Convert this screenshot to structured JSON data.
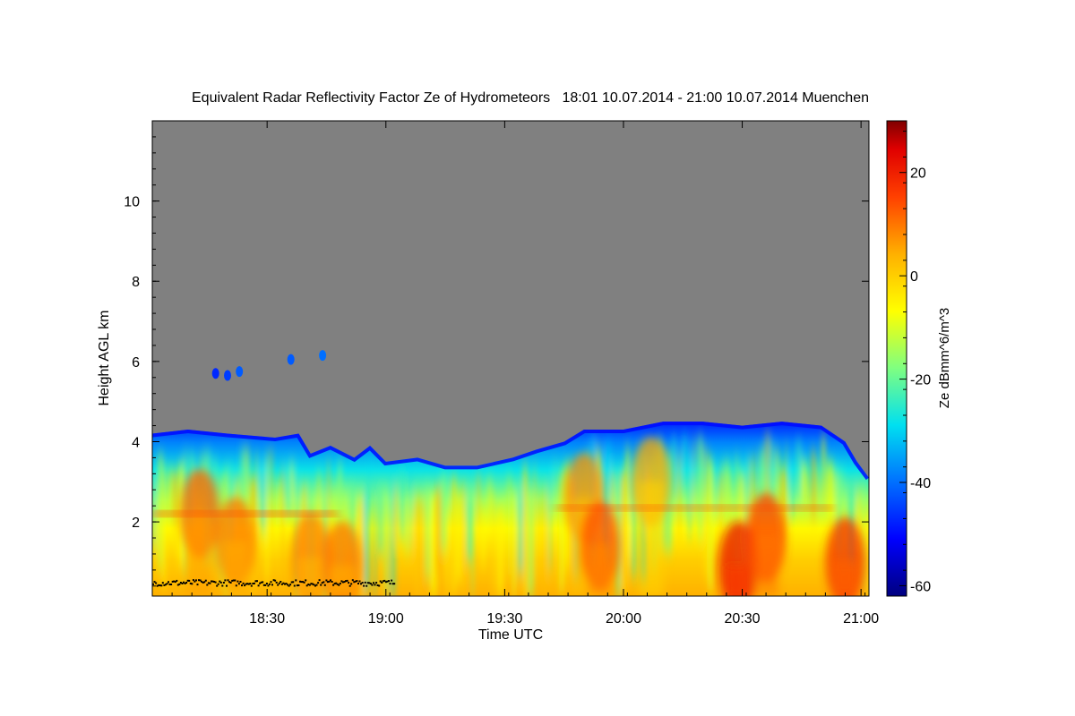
{
  "chart_data": {
    "type": "heatmap",
    "title": "Equivalent Radar Reflectivity Factor Ze of Hydrometeors   18:01 10.07.2014 - 21:00 10.07.2014 Muenchen",
    "xlabel": "Time UTC",
    "ylabel": "Height AGL km",
    "colorbar_label": "Ze dBmm^6/m^3",
    "x_range_minutes_utc": [
      1081,
      1262
    ],
    "x_ticks": [
      {
        "minute": 1110,
        "label": "18:30"
      },
      {
        "minute": 1140,
        "label": "19:00"
      },
      {
        "minute": 1170,
        "label": "19:30"
      },
      {
        "minute": 1200,
        "label": "20:00"
      },
      {
        "minute": 1230,
        "label": "20:30"
      },
      {
        "minute": 1260,
        "label": "21:00"
      }
    ],
    "ylim": [
      0.15,
      12.0
    ],
    "y_ticks": [
      2,
      4,
      6,
      8,
      10
    ],
    "colorbar_range": [
      -62,
      30
    ],
    "colorbar_ticks": [
      20,
      0,
      -20,
      -40,
      -60
    ],
    "background_no_signal": "#808080",
    "cloud_top_profile_km": [
      {
        "minute": 1081,
        "top": 4.2
      },
      {
        "minute": 1090,
        "top": 4.3
      },
      {
        "minute": 1100,
        "top": 4.2
      },
      {
        "minute": 1112,
        "top": 4.1
      },
      {
        "minute": 1118,
        "top": 4.2
      },
      {
        "minute": 1121,
        "top": 3.7
      },
      {
        "minute": 1126,
        "top": 3.9
      },
      {
        "minute": 1132,
        "top": 3.6
      },
      {
        "minute": 1136,
        "top": 3.9
      },
      {
        "minute": 1140,
        "top": 3.5
      },
      {
        "minute": 1148,
        "top": 3.6
      },
      {
        "minute": 1155,
        "top": 3.4
      },
      {
        "minute": 1163,
        "top": 3.4
      },
      {
        "minute": 1172,
        "top": 3.6
      },
      {
        "minute": 1178,
        "top": 3.8
      },
      {
        "minute": 1185,
        "top": 4.0
      },
      {
        "minute": 1190,
        "top": 4.3
      },
      {
        "minute": 1200,
        "top": 4.3
      },
      {
        "minute": 1210,
        "top": 4.5
      },
      {
        "minute": 1220,
        "top": 4.5
      },
      {
        "minute": 1230,
        "top": 4.4
      },
      {
        "minute": 1240,
        "top": 4.5
      },
      {
        "minute": 1250,
        "top": 4.4
      },
      {
        "minute": 1256,
        "top": 4.0
      },
      {
        "minute": 1259,
        "top": 3.5
      },
      {
        "minute": 1262,
        "top": 3.1
      }
    ],
    "high_echoes": [
      {
        "minute": 1097,
        "height": 5.7,
        "ze": -47
      },
      {
        "minute": 1100,
        "height": 5.65,
        "ze": -45
      },
      {
        "minute": 1103,
        "height": 5.75,
        "ze": -42
      },
      {
        "minute": 1116,
        "height": 6.05,
        "ze": -42
      },
      {
        "minute": 1124,
        "height": 6.15,
        "ze": -40
      }
    ],
    "intense_cores": [
      {
        "minute": 1093,
        "height": 2.2,
        "ze": 12
      },
      {
        "minute": 1102,
        "height": 1.5,
        "ze": 10
      },
      {
        "minute": 1121,
        "height": 1.1,
        "ze": 9
      },
      {
        "minute": 1129,
        "height": 0.9,
        "ze": 10
      },
      {
        "minute": 1190,
        "height": 2.6,
        "ze": 8
      },
      {
        "minute": 1194,
        "height": 1.4,
        "ze": 14
      },
      {
        "minute": 1207,
        "height": 3.0,
        "ze": 5
      },
      {
        "minute": 1229,
        "height": 0.9,
        "ze": 22
      },
      {
        "minute": 1236,
        "height": 1.6,
        "ze": 16
      },
      {
        "minute": 1256,
        "height": 1.0,
        "ze": 18
      }
    ],
    "bright_band_height_km": 2.2,
    "clutter_line": {
      "minute_start": 1081,
      "minute_end": 1142,
      "height_km": 0.5
    }
  }
}
